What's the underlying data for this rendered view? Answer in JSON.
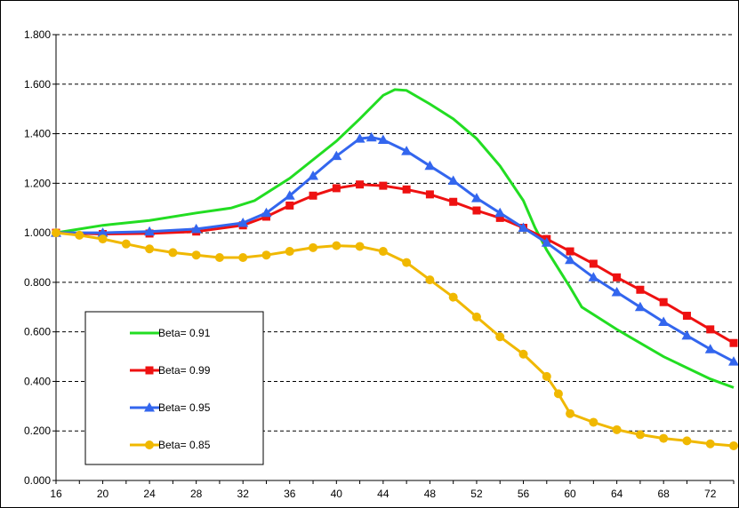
{
  "chart_data": {
    "type": "line",
    "title": "",
    "xlabel": "",
    "ylabel": "",
    "ylim": [
      0,
      1.8
    ],
    "xlim": [
      16,
      74
    ],
    "x_ticks": [
      "16",
      "20",
      "24",
      "28",
      "32",
      "36",
      "40",
      "44",
      "48",
      "52",
      "56",
      "60",
      "64",
      "68",
      "72"
    ],
    "y_ticks": [
      "0.000",
      "0.200",
      "0.400",
      "0.600",
      "0.800",
      "1.000",
      "1.200",
      "1.400",
      "1.600",
      "1.800"
    ],
    "grid": "horizontal dashed",
    "legend_placement": "bottom-left",
    "series": [
      {
        "name": "Beta= 0.91",
        "color": "#22dd22",
        "marker": "none",
        "points": [
          [
            16,
            1.0
          ],
          [
            20,
            1.03
          ],
          [
            24,
            1.05
          ],
          [
            28,
            1.08
          ],
          [
            31,
            1.1
          ],
          [
            33,
            1.13
          ],
          [
            36,
            1.22
          ],
          [
            40,
            1.37
          ],
          [
            42,
            1.46
          ],
          [
            44,
            1.555
          ],
          [
            45,
            1.578
          ],
          [
            46,
            1.575
          ],
          [
            48,
            1.52
          ],
          [
            50,
            1.46
          ],
          [
            52,
            1.38
          ],
          [
            54,
            1.27
          ],
          [
            56,
            1.13
          ],
          [
            57,
            1.02
          ],
          [
            58,
            0.93
          ],
          [
            60,
            0.78
          ],
          [
            61,
            0.7
          ],
          [
            64,
            0.61
          ],
          [
            68,
            0.5
          ],
          [
            72,
            0.41
          ],
          [
            74,
            0.375
          ]
        ]
      },
      {
        "name": "Beta= 0.99",
        "color": "#ee1111",
        "marker": "square",
        "points": [
          [
            16,
            1.0
          ],
          [
            20,
            0.995
          ],
          [
            24,
            0.997
          ],
          [
            28,
            1.005
          ],
          [
            32,
            1.03
          ],
          [
            34,
            1.065
          ],
          [
            36,
            1.11
          ],
          [
            38,
            1.15
          ],
          [
            40,
            1.18
          ],
          [
            42,
            1.195
          ],
          [
            44,
            1.19
          ],
          [
            46,
            1.175
          ],
          [
            48,
            1.155
          ],
          [
            50,
            1.125
          ],
          [
            52,
            1.09
          ],
          [
            54,
            1.06
          ],
          [
            56,
            1.02
          ],
          [
            58,
            0.975
          ],
          [
            60,
            0.925
          ],
          [
            62,
            0.875
          ],
          [
            64,
            0.82
          ],
          [
            66,
            0.77
          ],
          [
            68,
            0.72
          ],
          [
            70,
            0.665
          ],
          [
            72,
            0.61
          ],
          [
            74,
            0.555
          ]
        ]
      },
      {
        "name": "Beta= 0.95",
        "color": "#3366ee",
        "marker": "triangle",
        "points": [
          [
            16,
            1.0
          ],
          [
            20,
            1.0
          ],
          [
            24,
            1.005
          ],
          [
            28,
            1.015
          ],
          [
            32,
            1.04
          ],
          [
            34,
            1.08
          ],
          [
            36,
            1.15
          ],
          [
            38,
            1.23
          ],
          [
            40,
            1.31
          ],
          [
            42,
            1.38
          ],
          [
            43,
            1.385
          ],
          [
            44,
            1.375
          ],
          [
            46,
            1.33
          ],
          [
            48,
            1.27
          ],
          [
            50,
            1.21
          ],
          [
            52,
            1.14
          ],
          [
            54,
            1.08
          ],
          [
            56,
            1.02
          ],
          [
            58,
            0.96
          ],
          [
            60,
            0.89
          ],
          [
            62,
            0.82
          ],
          [
            64,
            0.76
          ],
          [
            66,
            0.7
          ],
          [
            68,
            0.64
          ],
          [
            70,
            0.585
          ],
          [
            72,
            0.53
          ],
          [
            74,
            0.48
          ]
        ]
      },
      {
        "name": "Beta= 0.85",
        "color": "#f0b800",
        "marker": "circle",
        "points": [
          [
            16,
            1.0
          ],
          [
            18,
            0.99
          ],
          [
            20,
            0.975
          ],
          [
            22,
            0.955
          ],
          [
            24,
            0.935
          ],
          [
            26,
            0.92
          ],
          [
            28,
            0.91
          ],
          [
            30,
            0.9
          ],
          [
            32,
            0.9
          ],
          [
            34,
            0.91
          ],
          [
            36,
            0.925
          ],
          [
            38,
            0.94
          ],
          [
            40,
            0.948
          ],
          [
            42,
            0.945
          ],
          [
            44,
            0.925
          ],
          [
            46,
            0.88
          ],
          [
            48,
            0.81
          ],
          [
            50,
            0.74
          ],
          [
            52,
            0.66
          ],
          [
            54,
            0.58
          ],
          [
            56,
            0.51
          ],
          [
            58,
            0.42
          ],
          [
            59,
            0.35
          ],
          [
            60,
            0.27
          ],
          [
            62,
            0.235
          ],
          [
            64,
            0.205
          ],
          [
            66,
            0.185
          ],
          [
            68,
            0.17
          ],
          [
            70,
            0.16
          ],
          [
            72,
            0.148
          ],
          [
            74,
            0.14
          ]
        ]
      }
    ]
  }
}
